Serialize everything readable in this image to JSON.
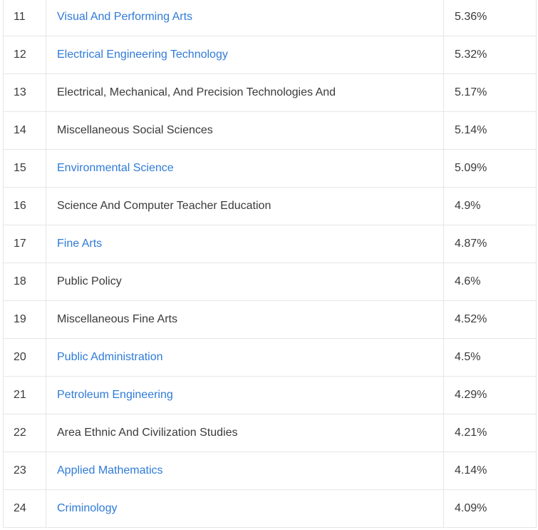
{
  "table": {
    "rows": [
      {
        "rank": "11",
        "major": "Visual And Performing Arts",
        "percent": "5.36%",
        "link": true
      },
      {
        "rank": "12",
        "major": "Electrical Engineering Technology",
        "percent": "5.32%",
        "link": true
      },
      {
        "rank": "13",
        "major": "Electrical, Mechanical, And Precision Technologies And",
        "percent": "5.17%",
        "link": false
      },
      {
        "rank": "14",
        "major": "Miscellaneous Social Sciences",
        "percent": "5.14%",
        "link": false
      },
      {
        "rank": "15",
        "major": "Environmental Science",
        "percent": "5.09%",
        "link": true
      },
      {
        "rank": "16",
        "major": "Science And Computer Teacher Education",
        "percent": "4.9%",
        "link": false
      },
      {
        "rank": "17",
        "major": "Fine Arts",
        "percent": "4.87%",
        "link": true
      },
      {
        "rank": "18",
        "major": "Public Policy",
        "percent": "4.6%",
        "link": false
      },
      {
        "rank": "19",
        "major": "Miscellaneous Fine Arts",
        "percent": "4.52%",
        "link": false
      },
      {
        "rank": "20",
        "major": "Public Administration",
        "percent": "4.5%",
        "link": true
      },
      {
        "rank": "21",
        "major": "Petroleum Engineering",
        "percent": "4.29%",
        "link": true
      },
      {
        "rank": "22",
        "major": "Area Ethnic And Civilization Studies",
        "percent": "4.21%",
        "link": false
      },
      {
        "rank": "23",
        "major": "Applied Mathematics",
        "percent": "4.14%",
        "link": true
      },
      {
        "rank": "24",
        "major": "Criminology",
        "percent": "4.09%",
        "link": true
      }
    ]
  },
  "colors": {
    "link": "#2f7bd8",
    "text": "#3a3a3a",
    "border": "#e6e6e6"
  }
}
